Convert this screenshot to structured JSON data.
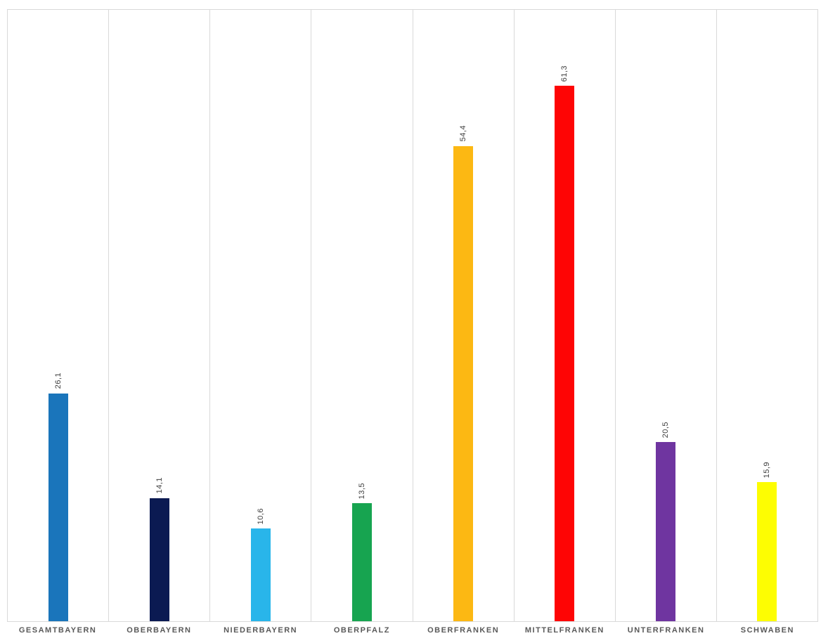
{
  "chart_data": {
    "type": "bar",
    "title": "",
    "xlabel": "",
    "ylabel": "",
    "ylim": [
      0,
      70
    ],
    "grid": "vertical-category-separators",
    "legend": "none",
    "categories": [
      "GESAMTBAYERN",
      "OBERBAYERN",
      "NIEDERBAYERN",
      "OBERPFALZ",
      "OBERFRANKEN",
      "MITTELFRANKEN",
      "UNTERFRANKEN",
      "SCHWABEN"
    ],
    "values": [
      26.1,
      14.1,
      10.6,
      13.5,
      54.4,
      61.3,
      20.5,
      15.9
    ],
    "value_labels": [
      "26,1",
      "14,1",
      "10,6",
      "13,5",
      "54,4",
      "61,3",
      "20,5",
      "15,9"
    ],
    "colors": [
      "#1a75bb",
      "#0b1a52",
      "#29b5ea",
      "#17a450",
      "#fcb813",
      "#fe0505",
      "#6f3titles",
      "#fdfd02"
    ]
  },
  "colors_fixed": [
    "#1a75bb",
    "#0b1a52",
    "#29b5ea",
    "#17a450",
    "#fcb813",
    "#fe0505",
    "#6f35a0",
    "#fdfd02"
  ],
  "frame_border_color": "#d9d9d9",
  "label_color": "#595959"
}
